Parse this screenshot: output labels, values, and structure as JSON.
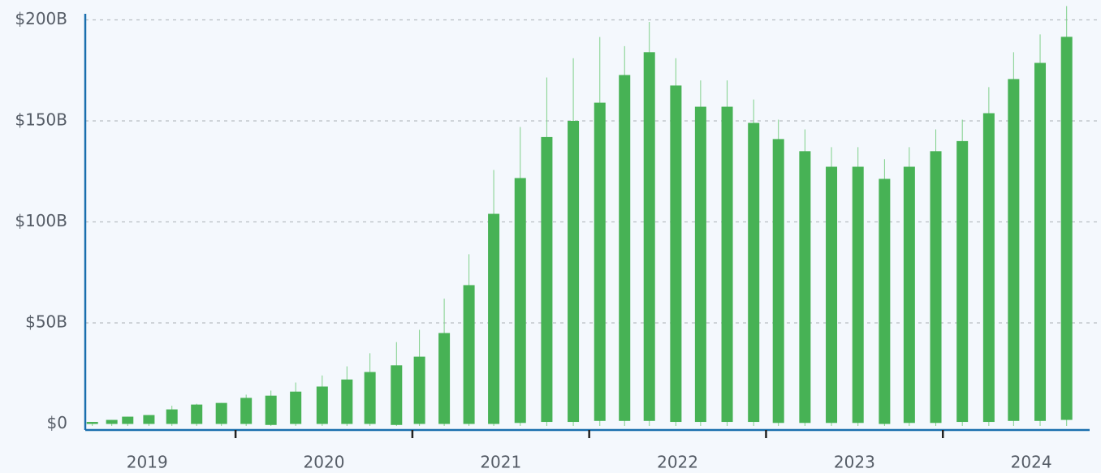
{
  "chart_data": {
    "type": "candlestick",
    "x": [
      2019.19,
      2019.3,
      2019.39,
      2019.51,
      2019.64,
      2019.78,
      2019.92,
      2020.06,
      2020.2,
      2020.34,
      2020.49,
      2020.63,
      2020.76,
      2020.91,
      2021.04,
      2021.18,
      2021.32,
      2021.46,
      2021.61,
      2021.76,
      2021.91,
      2022.06,
      2022.2,
      2022.34,
      2022.49,
      2022.63,
      2022.78,
      2022.93,
      2023.07,
      2023.22,
      2023.37,
      2023.52,
      2023.67,
      2023.81,
      2023.96,
      2024.11,
      2024.26,
      2024.4,
      2024.55,
      2024.7
    ],
    "series": [
      {
        "color": "#47b255",
        "wick_color": "#7fd08a",
        "open": [
          0,
          0,
          0,
          0,
          0,
          0,
          0,
          0,
          -0.5,
          0,
          0,
          0,
          0,
          -0.5,
          0,
          0,
          0,
          0,
          0.5,
          1,
          1,
          1.5,
          1.5,
          1.5,
          1,
          1,
          1,
          1,
          0.5,
          0.5,
          0.5,
          0.5,
          0,
          0.5,
          0.5,
          1,
          1,
          1.5,
          1.5,
          2
        ],
        "close": [
          1,
          2,
          3.6,
          4.4,
          7.2,
          9.6,
          10.4,
          12.9,
          14,
          16,
          18.5,
          22,
          25.7,
          29,
          33.3,
          45,
          68.7,
          104,
          121.7,
          142,
          150,
          159,
          172.7,
          184,
          167.5,
          157,
          157,
          149,
          141,
          135,
          127.3,
          127.3,
          121.3,
          127.3,
          135,
          140,
          153.8,
          170.7,
          178.7,
          191.6
        ],
        "high": [
          1,
          2,
          3.6,
          4.4,
          9,
          10,
          10.4,
          14.5,
          16.5,
          20.5,
          24,
          28.5,
          35,
          40.5,
          46.6,
          62,
          84,
          125.7,
          147,
          171.5,
          181,
          191.5,
          187,
          199,
          181,
          170,
          170,
          160.6,
          150.6,
          145.8,
          137,
          137,
          131,
          137,
          145.8,
          150.6,
          166.7,
          184,
          192.8,
          206.8
        ],
        "low": [
          -1,
          -1,
          -1,
          -1,
          -1,
          -1,
          -1,
          -1,
          -1,
          -1,
          -1,
          -1,
          -1,
          -1,
          -1,
          -1,
          -1,
          -1,
          -1,
          -1,
          -1,
          -1,
          -1,
          -1,
          -1,
          -1,
          -1,
          -1,
          -1,
          -1,
          -1,
          -1,
          -1,
          -1,
          -1,
          -1,
          -1,
          -1,
          -1,
          -1
        ]
      }
    ],
    "xlim": [
      2019.15,
      2024.83
    ],
    "xticks": [
      2020,
      2021,
      2022,
      2023,
      2024
    ],
    "year_labels": [
      {
        "value": 2019.5,
        "label": "2019"
      },
      {
        "value": 2020.5,
        "label": "2020"
      },
      {
        "value": 2021.5,
        "label": "2021"
      },
      {
        "value": 2022.5,
        "label": "2022"
      },
      {
        "value": 2023.5,
        "label": "2023"
      },
      {
        "value": 2024.5,
        "label": "2024"
      }
    ],
    "ylim": [
      -3,
      203
    ],
    "yticks": [
      {
        "value": 0,
        "label": "$0"
      },
      {
        "value": 50,
        "label": "$50B"
      },
      {
        "value": 100,
        "label": "$100B"
      },
      {
        "value": 150,
        "label": "$150B"
      },
      {
        "value": 200,
        "label": "$200B"
      }
    ],
    "grid": true,
    "axis_color": "#1a6fae"
  }
}
